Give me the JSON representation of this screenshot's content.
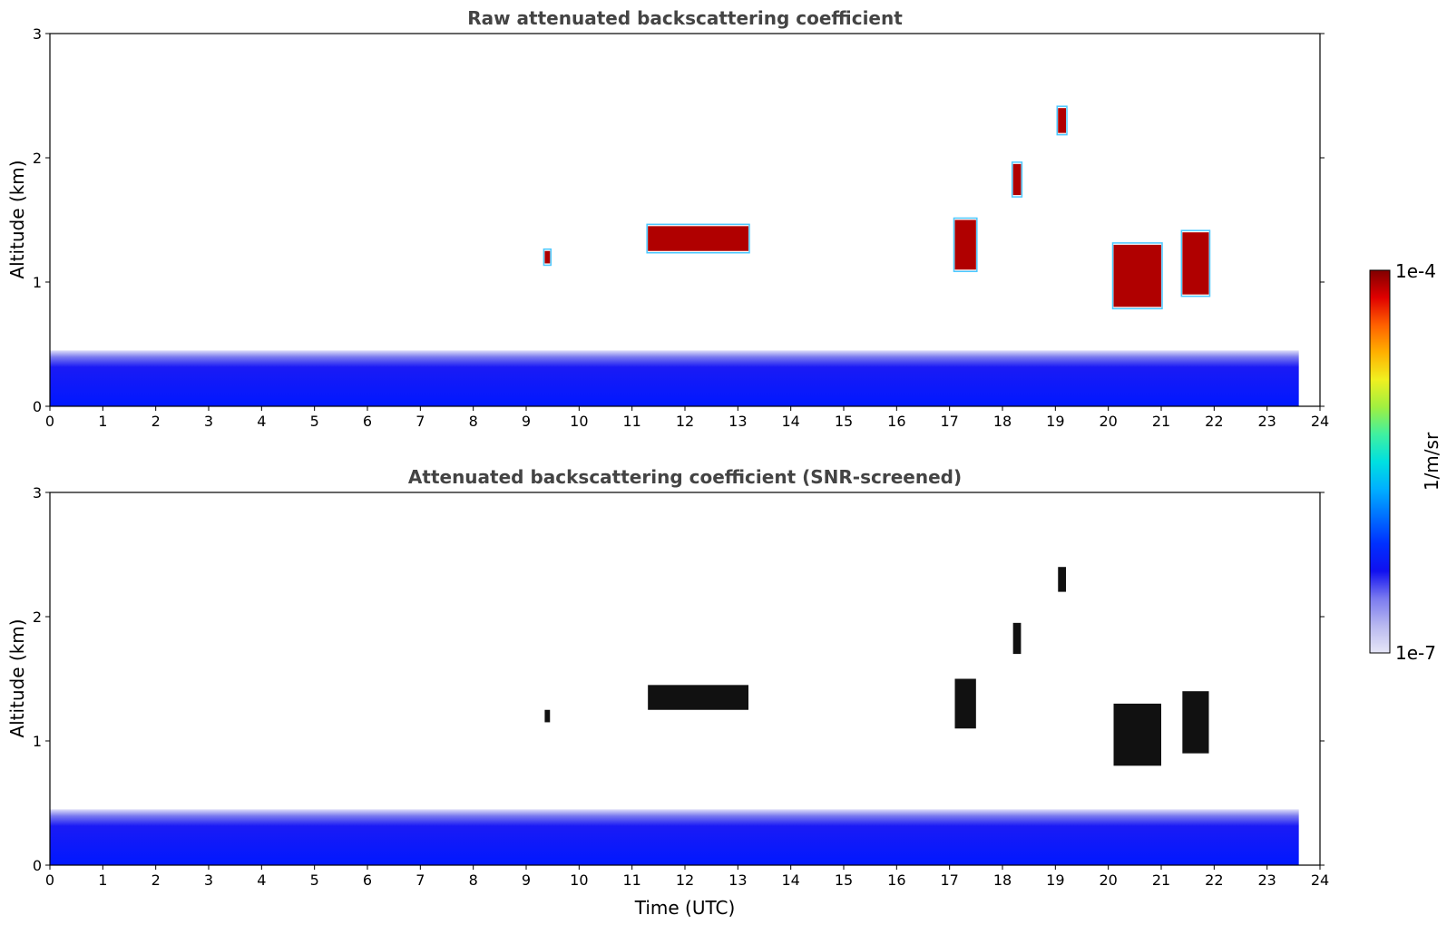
{
  "chart_data": [
    {
      "type": "heatmap",
      "title": "Raw attenuated backscattering coefficient",
      "xlabel": "",
      "ylabel": "Altitude (km)",
      "xlim": [
        0,
        24
      ],
      "ylim": [
        0,
        3
      ],
      "x_ticks": [
        "0",
        "1",
        "2",
        "3",
        "4",
        "5",
        "6",
        "7",
        "8",
        "9",
        "10",
        "11",
        "12",
        "13",
        "14",
        "15",
        "16",
        "17",
        "18",
        "19",
        "20",
        "21",
        "22",
        "23",
        "24"
      ],
      "y_ticks": [
        "0",
        "1",
        "2",
        "3"
      ],
      "data_end_time": 23.6,
      "layers": [
        {
          "feature": "near-surface aerosol",
          "t_start": 0,
          "t_end": 23.6,
          "alt_bottom": 0.0,
          "alt_top": 0.45,
          "level": "mid-low"
        },
        {
          "feature": "cloud",
          "t_start": 9.35,
          "t_end": 9.45,
          "alt_bottom": 1.15,
          "alt_top": 1.25,
          "level": "high"
        },
        {
          "feature": "cloud",
          "t_start": 11.3,
          "t_end": 13.2,
          "alt_bottom": 1.25,
          "alt_top": 1.45,
          "level": "high"
        },
        {
          "feature": "cloud",
          "t_start": 17.1,
          "t_end": 17.5,
          "alt_bottom": 1.1,
          "alt_top": 1.5,
          "level": "high"
        },
        {
          "feature": "cloud",
          "t_start": 18.2,
          "t_end": 18.35,
          "alt_bottom": 1.7,
          "alt_top": 1.95,
          "level": "high"
        },
        {
          "feature": "cloud",
          "t_start": 19.05,
          "t_end": 19.2,
          "alt_bottom": 2.2,
          "alt_top": 2.4,
          "level": "high"
        },
        {
          "feature": "cloud",
          "t_start": 20.1,
          "t_end": 21.0,
          "alt_bottom": 0.8,
          "alt_top": 1.3,
          "level": "high"
        },
        {
          "feature": "cloud",
          "t_start": 21.4,
          "t_end": 21.9,
          "alt_bottom": 0.9,
          "alt_top": 1.4,
          "level": "high"
        }
      ]
    },
    {
      "type": "heatmap",
      "title": "Attenuated backscattering coefficient (SNR-screened)",
      "xlabel": "Time (UTC)",
      "ylabel": "Altitude (km)",
      "xlim": [
        0,
        24
      ],
      "ylim": [
        0,
        3
      ],
      "x_ticks": [
        "0",
        "1",
        "2",
        "3",
        "4",
        "5",
        "6",
        "7",
        "8",
        "9",
        "10",
        "11",
        "12",
        "13",
        "14",
        "15",
        "16",
        "17",
        "18",
        "19",
        "20",
        "21",
        "22",
        "23",
        "24"
      ],
      "y_ticks": [
        "0",
        "1",
        "2",
        "3"
      ],
      "data_end_time": 23.6,
      "layers": [
        {
          "feature": "near-surface aerosol",
          "t_start": 0,
          "t_end": 23.6,
          "alt_bottom": 0.0,
          "alt_top": 0.45,
          "level": "mid-low"
        },
        {
          "feature": "cloud",
          "t_start": 9.35,
          "t_end": 9.45,
          "alt_bottom": 1.15,
          "alt_top": 1.25,
          "level": "saturated"
        },
        {
          "feature": "cloud",
          "t_start": 11.3,
          "t_end": 13.2,
          "alt_bottom": 1.25,
          "alt_top": 1.45,
          "level": "saturated"
        },
        {
          "feature": "cloud",
          "t_start": 17.1,
          "t_end": 17.5,
          "alt_bottom": 1.1,
          "alt_top": 1.5,
          "level": "saturated"
        },
        {
          "feature": "cloud",
          "t_start": 18.2,
          "t_end": 18.35,
          "alt_bottom": 1.7,
          "alt_top": 1.95,
          "level": "saturated"
        },
        {
          "feature": "cloud",
          "t_start": 19.05,
          "t_end": 19.2,
          "alt_bottom": 2.2,
          "alt_top": 2.4,
          "level": "saturated"
        },
        {
          "feature": "cloud",
          "t_start": 20.1,
          "t_end": 21.0,
          "alt_bottom": 0.8,
          "alt_top": 1.3,
          "level": "saturated"
        },
        {
          "feature": "cloud",
          "t_start": 21.4,
          "t_end": 21.9,
          "alt_bottom": 0.9,
          "alt_top": 1.4,
          "level": "saturated"
        }
      ]
    }
  ],
  "colorbar": {
    "label": "1/m/sr",
    "max_label": "1e-4",
    "min_label": "1e-7",
    "colors": [
      "#e6e6f7",
      "#b8b8f0",
      "#7a7af0",
      "#1010f0",
      "#0030ff",
      "#0070ff",
      "#00b0ff",
      "#00e0e0",
      "#40f0a0",
      "#a0f040",
      "#f0f020",
      "#ffb000",
      "#ff6000",
      "#e00000",
      "#800000"
    ]
  }
}
